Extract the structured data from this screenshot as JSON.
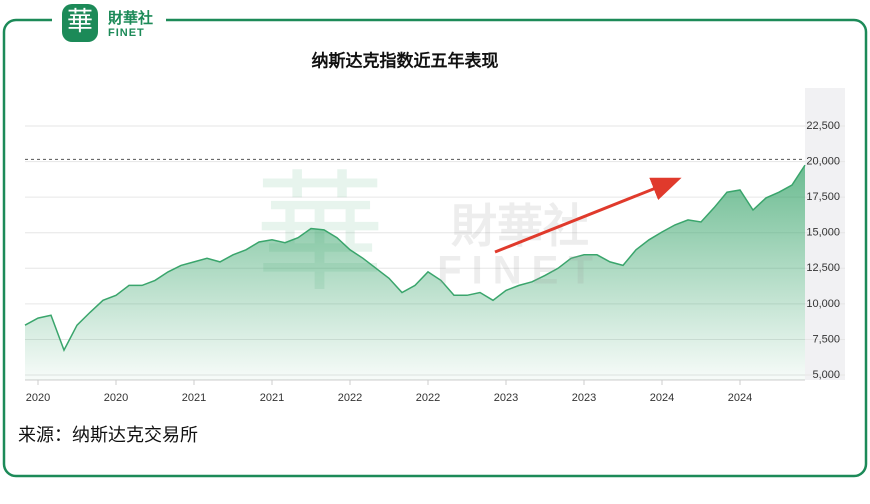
{
  "logo": {
    "mark": "華",
    "name": "財華社",
    "sub": "FINET"
  },
  "watermark": {
    "name": "財華社",
    "sub": "FINET"
  },
  "source": "来源：纳斯达克交易所",
  "chart_data": {
    "type": "area",
    "title": "纳斯达克指数近五年表现",
    "categories": [
      null,
      "2020",
      null,
      null,
      null,
      null,
      null,
      "2020",
      null,
      null,
      null,
      null,
      null,
      "2021",
      null,
      null,
      null,
      null,
      null,
      "2021",
      null,
      null,
      null,
      null,
      null,
      "2022",
      null,
      null,
      null,
      null,
      null,
      "2022",
      null,
      null,
      null,
      null,
      null,
      "2023",
      null,
      null,
      null,
      null,
      null,
      "2023",
      null,
      null,
      null,
      null,
      null,
      "2024",
      null,
      null,
      null,
      null,
      null,
      "2024",
      null,
      null,
      null,
      null,
      null
    ],
    "values": [
      8500,
      9000,
      9200,
      6750,
      8500,
      9400,
      10250,
      10600,
      11300,
      11300,
      11650,
      12250,
      12700,
      12950,
      13200,
      12950,
      13450,
      13800,
      14350,
      14500,
      14300,
      14650,
      15300,
      15200,
      14650,
      13800,
      13200,
      12500,
      11800,
      10800,
      11300,
      12250,
      11650,
      10600,
      10600,
      10800,
      10250,
      10950,
      11300,
      11550,
      12000,
      12500,
      13200,
      13450,
      13450,
      12950,
      12700,
      13800,
      14500,
      15050,
      15550,
      15900,
      15750,
      16750,
      17850,
      18000,
      16600,
      17450,
      17850,
      18350,
      19750
    ],
    "color": "#3aa56c",
    "ylim": [
      4650,
      25170
    ],
    "yticks": [
      {
        "value": 5000,
        "label": "5,000"
      },
      {
        "value": 7500,
        "label": "7,500"
      },
      {
        "value": 10000,
        "label": "10,000"
      },
      {
        "value": 12500,
        "label": "12,500"
      },
      {
        "value": 15000,
        "label": "15,000"
      },
      {
        "value": 17500,
        "label": "17,500"
      },
      {
        "value": 20000,
        "label": "20,000"
      },
      {
        "value": 22500,
        "label": "22,500"
      }
    ],
    "reference_line": 20150,
    "grid": true
  }
}
